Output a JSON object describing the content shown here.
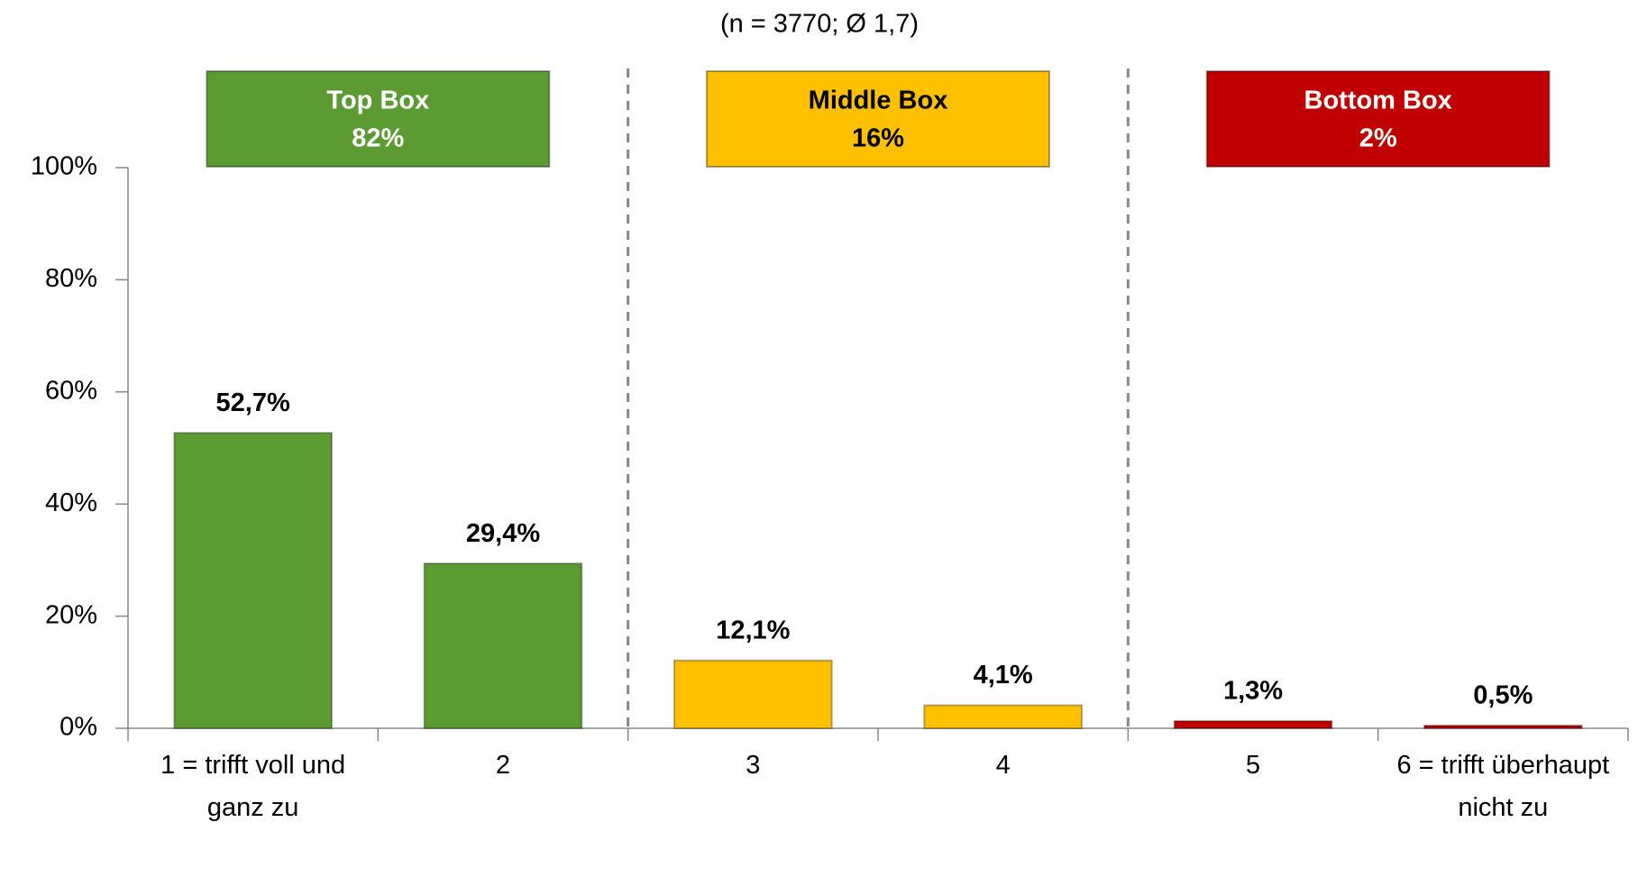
{
  "chart_data": {
    "type": "bar",
    "subtitle": "(n = 3770; Ø 1,7)",
    "categories": [
      "1 = trifft voll und ganz zu",
      "2",
      "3",
      "4",
      "5",
      "6 = trifft überhaupt nicht zu"
    ],
    "values": [
      52.7,
      29.4,
      12.1,
      4.1,
      1.3,
      0.5
    ],
    "value_labels": [
      "52,7%",
      "29,4%",
      "12,1%",
      "4,1%",
      "1,3%",
      "0,5%"
    ],
    "colors": [
      "#5b9b32",
      "#5b9b32",
      "#ffc000",
      "#ffc000",
      "#c00000",
      "#c00000"
    ],
    "ylim": [
      0,
      100
    ],
    "yticks": [
      {
        "value": 0,
        "label": "0%"
      },
      {
        "value": 20,
        "label": "20%"
      },
      {
        "value": 40,
        "label": "40%"
      },
      {
        "value": 60,
        "label": "60%"
      },
      {
        "value": 80,
        "label": "80%"
      },
      {
        "value": 100,
        "label": "100%"
      }
    ],
    "boxes": [
      {
        "label": "Top Box",
        "value": 82,
        "value_label": "82%",
        "color": "#5b9b32"
      },
      {
        "label": "Middle Box",
        "value": 16,
        "value_label": "16%",
        "color": "#ffc000"
      },
      {
        "label": "Bottom Box",
        "value": 2,
        "value_label": "2%",
        "color": "#c00000"
      }
    ]
  }
}
